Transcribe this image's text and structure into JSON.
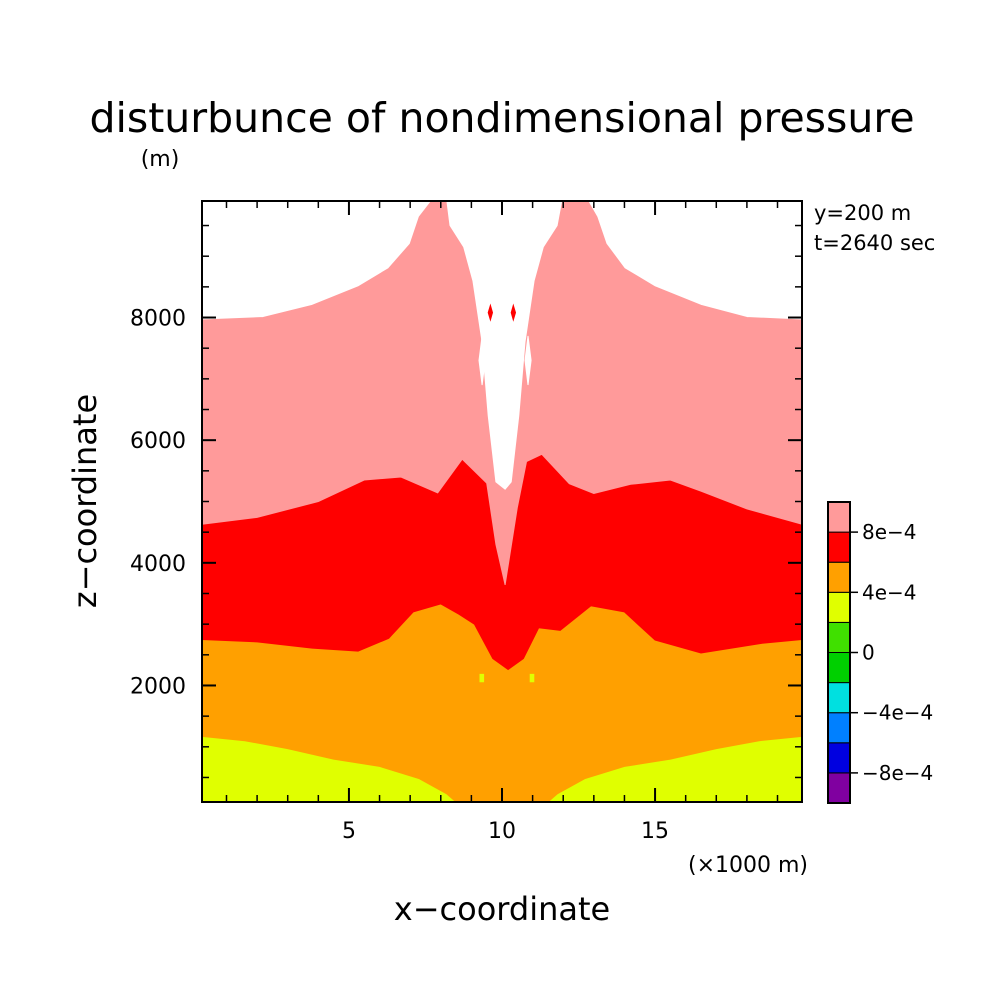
{
  "chart_data": {
    "type": "heatmap",
    "title": "disturbunce of nondimensional pressure",
    "title_unit": "(m)",
    "xlabel": "x−coordinate",
    "x_unit": "(×1000 m)",
    "ylabel": "z−coordinate",
    "annotations": [
      "y=200 m",
      "t=2640 sec"
    ],
    "xlim": [
      0.2,
      19.8
    ],
    "ylim": [
      100,
      9900
    ],
    "x_ticks": [
      5,
      10,
      15
    ],
    "x_tick_labels": [
      "5",
      "10",
      "15"
    ],
    "y_ticks": [
      2000,
      4000,
      6000,
      8000
    ],
    "y_tick_labels": [
      "2000",
      "4000",
      "6000",
      "8000"
    ],
    "grid": false,
    "legend_placement": "right",
    "colorbar": {
      "levels": [
        {
          "range": [
            -0.001,
            -0.0008
          ],
          "color": "#8000a0"
        },
        {
          "range": [
            -0.0008,
            -0.0006
          ],
          "color": "#0000e0"
        },
        {
          "range": [
            -0.0006,
            -0.0004
          ],
          "color": "#0080ff"
        },
        {
          "range": [
            -0.0004,
            -0.0002
          ],
          "color": "#00e0e0"
        },
        {
          "range": [
            -0.0002,
            0
          ],
          "color": "#00d000"
        },
        {
          "range": [
            0,
            0.0002
          ],
          "color": "#40e000"
        },
        {
          "range": [
            0.0002,
            0.0004
          ],
          "color": "#e0ff00"
        },
        {
          "range": [
            0.0004,
            0.0006
          ],
          "color": "#ffa000"
        },
        {
          "range": [
            0.0006,
            0.0008
          ],
          "color": "#ff0000"
        },
        {
          "range": [
            0.0008,
            0.001
          ],
          "color": "#ff9a9a"
        }
      ],
      "tick_labels": [
        "−8e−4",
        "−4e−4",
        "0",
        "4e−4",
        "8e−4"
      ],
      "tick_values": [
        -0.0008,
        -0.0004,
        0,
        0.0004,
        0.0008
      ]
    },
    "regions": [
      {
        "level": "0.0002 to 0.0004",
        "color": "#e0ff00",
        "boundary": [
          [
            0.2,
            100
          ],
          [
            0.2,
            1170
          ],
          [
            1.6,
            1100
          ],
          [
            3,
            970
          ],
          [
            4.5,
            800
          ],
          [
            6,
            680
          ],
          [
            7.3,
            480
          ],
          [
            8.2,
            230
          ],
          [
            8.5,
            100
          ]
        ]
      },
      {
        "level": "0.0002 to 0.0004",
        "color": "#e0ff00",
        "boundary": [
          [
            19.8,
            100
          ],
          [
            19.8,
            1170
          ],
          [
            18.4,
            1100
          ],
          [
            17,
            970
          ],
          [
            15.5,
            800
          ],
          [
            14,
            680
          ],
          [
            12.7,
            480
          ],
          [
            11.8,
            230
          ],
          [
            11.5,
            100
          ]
        ]
      },
      {
        "level": "0.0002 to 0.0004",
        "color": "#e0ff00",
        "boundary": [
          [
            9.5,
            250
          ],
          [
            9.75,
            620
          ],
          [
            10.45,
            620
          ],
          [
            10.7,
            250
          ],
          [
            10.5,
            100
          ],
          [
            9.7,
            100
          ]
        ]
      },
      {
        "level": "0.0004 to 0.0006",
        "color": "#ffa000",
        "boundary": [
          [
            0.2,
            1170
          ],
          [
            1.6,
            1100
          ],
          [
            3,
            970
          ],
          [
            4.5,
            800
          ],
          [
            6,
            680
          ],
          [
            7.3,
            480
          ],
          [
            8.2,
            230
          ],
          [
            8.5,
            100
          ],
          [
            11.5,
            100
          ],
          [
            11.8,
            230
          ],
          [
            12.7,
            480
          ],
          [
            14,
            680
          ],
          [
            15.5,
            800
          ],
          [
            17,
            970
          ],
          [
            18.4,
            1100
          ],
          [
            19.8,
            1170
          ],
          [
            19.8,
            2750
          ],
          [
            18.5,
            2690
          ],
          [
            16.5,
            2530
          ],
          [
            15,
            2740
          ],
          [
            14,
            3200
          ],
          [
            12.9,
            3300
          ],
          [
            11.9,
            2900
          ],
          [
            11.2,
            2940
          ],
          [
            10.7,
            2440
          ],
          [
            10.2,
            2260
          ],
          [
            9.7,
            2440
          ],
          [
            9.1,
            3000
          ],
          [
            8.6,
            3160
          ],
          [
            8,
            3330
          ],
          [
            7.1,
            3200
          ],
          [
            6.3,
            2770
          ],
          [
            5.3,
            2560
          ],
          [
            3.8,
            2610
          ],
          [
            2,
            2710
          ],
          [
            0.2,
            2750
          ]
        ]
      },
      {
        "level": "0.0006 to 0.0008",
        "color": "#ff0000",
        "boundary": [
          [
            0.2,
            2750
          ],
          [
            2,
            2710
          ],
          [
            3.8,
            2610
          ],
          [
            5.3,
            2560
          ],
          [
            6.3,
            2770
          ],
          [
            7.1,
            3200
          ],
          [
            8,
            3330
          ],
          [
            8.6,
            3160
          ],
          [
            9.1,
            3000
          ],
          [
            9.7,
            2440
          ],
          [
            10.2,
            2260
          ],
          [
            10.7,
            2440
          ],
          [
            11.2,
            2940
          ],
          [
            11.9,
            2900
          ],
          [
            12.9,
            3300
          ],
          [
            14,
            3200
          ],
          [
            15,
            2740
          ],
          [
            16.5,
            2530
          ],
          [
            18.5,
            2690
          ],
          [
            19.8,
            2750
          ],
          [
            19.8,
            4630
          ],
          [
            18,
            4880
          ],
          [
            16.5,
            5170
          ],
          [
            15.5,
            5350
          ],
          [
            14.2,
            5280
          ],
          [
            13,
            5130
          ],
          [
            12.2,
            5290
          ],
          [
            11.3,
            5770
          ],
          [
            10.8,
            5650
          ],
          [
            10.5,
            4900
          ],
          [
            10.1,
            3640
          ],
          [
            9.8,
            4300
          ],
          [
            9.5,
            5300
          ],
          [
            8.7,
            5690
          ],
          [
            7.9,
            5140
          ],
          [
            6.7,
            5400
          ],
          [
            5.5,
            5350
          ],
          [
            4,
            5000
          ],
          [
            2,
            4740
          ],
          [
            0.2,
            4630
          ]
        ]
      },
      {
        "level": "0.0008 to 0.001",
        "color": "#ff9a9a",
        "boundary": [
          [
            0.2,
            4630
          ],
          [
            2,
            4740
          ],
          [
            4,
            5000
          ],
          [
            5.5,
            5350
          ],
          [
            6.7,
            5400
          ],
          [
            7.9,
            5140
          ],
          [
            8.7,
            5690
          ],
          [
            9.5,
            5300
          ],
          [
            9.8,
            4300
          ],
          [
            10.1,
            3640
          ],
          [
            10.5,
            4900
          ],
          [
            10.8,
            5650
          ],
          [
            11.3,
            5770
          ],
          [
            12.2,
            5290
          ],
          [
            13,
            5130
          ],
          [
            14.2,
            5280
          ],
          [
            15.5,
            5350
          ],
          [
            16.5,
            5170
          ],
          [
            18,
            4880
          ],
          [
            19.8,
            4630
          ],
          [
            19.8,
            7960
          ],
          [
            18,
            8000
          ],
          [
            16.5,
            8200
          ],
          [
            15,
            8500
          ],
          [
            14,
            8800
          ],
          [
            13.4,
            9200
          ],
          [
            13.1,
            9640
          ],
          [
            12.8,
            9900
          ],
          [
            7.7,
            9900
          ],
          [
            7.3,
            9640
          ],
          [
            7,
            9200
          ],
          [
            6.3,
            8800
          ],
          [
            5.3,
            8500
          ],
          [
            3.8,
            8200
          ],
          [
            2.2,
            8000
          ],
          [
            0.2,
            7960
          ]
        ]
      },
      {
        "level": "above 0.001",
        "color": "#ffffff",
        "boundary": [
          [
            9.8,
            5320
          ],
          [
            9.55,
            6400
          ],
          [
            9.35,
            7600
          ],
          [
            9.05,
            8600
          ],
          [
            8.75,
            9150
          ],
          [
            8.3,
            9500
          ],
          [
            8.2,
            9900
          ],
          [
            11.95,
            9900
          ],
          [
            11.8,
            9500
          ],
          [
            11.35,
            9150
          ],
          [
            11.05,
            8600
          ],
          [
            10.75,
            7600
          ],
          [
            10.55,
            6400
          ],
          [
            10.3,
            5320
          ],
          [
            10.1,
            5200
          ]
        ]
      },
      {
        "level": "above 0.001",
        "color": "#ffffff",
        "boundary": [
          [
            9.25,
            7300
          ],
          [
            9.35,
            6900
          ],
          [
            9.45,
            7300
          ],
          [
            9.35,
            7700
          ]
        ]
      },
      {
        "level": "above 0.001",
        "color": "#ffffff",
        "boundary": [
          [
            10.75,
            7300
          ],
          [
            10.85,
            6900
          ],
          [
            10.95,
            7300
          ],
          [
            10.85,
            7700
          ]
        ]
      },
      {
        "level": "0.0006 to 0.0008",
        "color": "#ff0000",
        "boundary": [
          [
            9.55,
            8080
          ],
          [
            9.62,
            8200
          ],
          [
            9.69,
            8080
          ],
          [
            9.62,
            7960
          ]
        ]
      },
      {
        "level": "0.0006 to 0.0008",
        "color": "#ff0000",
        "boundary": [
          [
            10.3,
            8080
          ],
          [
            10.37,
            8200
          ],
          [
            10.44,
            8080
          ],
          [
            10.37,
            7960
          ]
        ]
      },
      {
        "level": "0.0002 to 0.0004",
        "color": "#e0ff00",
        "boundary": [
          [
            9.28,
            2060
          ],
          [
            9.4,
            2060
          ],
          [
            9.4,
            2180
          ],
          [
            9.28,
            2180
          ]
        ]
      },
      {
        "level": "0.0002 to 0.0004",
        "color": "#e0ff00",
        "boundary": [
          [
            10.92,
            2060
          ],
          [
            11.04,
            2060
          ],
          [
            11.04,
            2180
          ],
          [
            10.92,
            2180
          ]
        ]
      }
    ]
  }
}
